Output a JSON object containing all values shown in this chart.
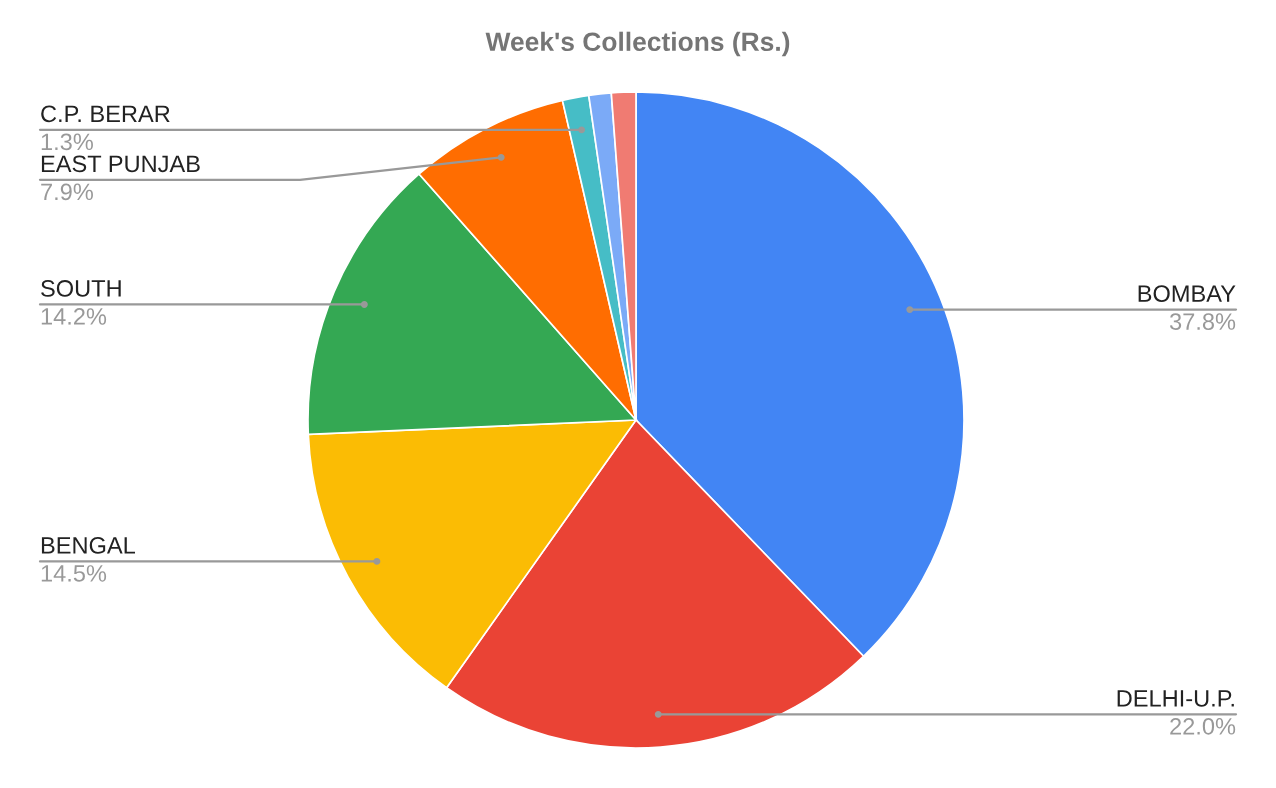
{
  "chart_data": {
    "type": "pie",
    "title": "Week's Collections (Rs.)",
    "categories": [
      "BOMBAY",
      "DELHI-U.P.",
      "BENGAL",
      "SOUTH",
      "EAST PUNJAB",
      "C.P. BERAR",
      null,
      null
    ],
    "values": [
      37.8,
      22.0,
      14.5,
      14.2,
      7.9,
      1.3,
      1.1,
      1.2
    ],
    "value_labels": [
      "37.8%",
      "22.0%",
      "14.5%",
      "14.2%",
      "7.9%",
      "1.3%",
      null,
      null
    ],
    "colors": [
      "#4285f4",
      "#ea4335",
      "#fbbc04",
      "#34a853",
      "#ff6d01",
      "#46bdc6",
      "#7baaf7",
      "#f07b72"
    ],
    "legend": false
  }
}
